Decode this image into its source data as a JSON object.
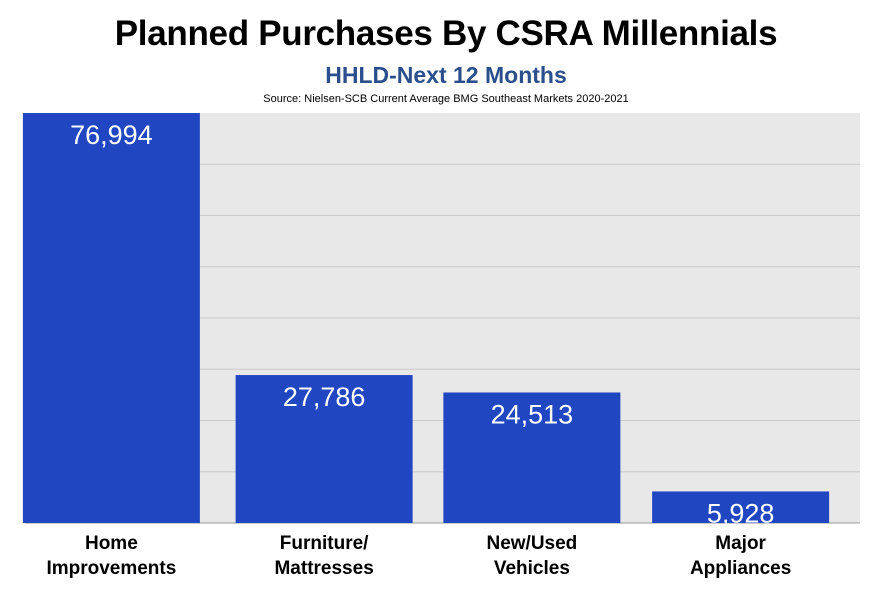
{
  "colors": {
    "bar": "#2046C2",
    "plot_bg": "#E8E8E8",
    "subtitle": "#2B4F8C",
    "grid": "#C9C9C9"
  },
  "chart_data": {
    "type": "bar",
    "title": "Planned Purchases By CSRA Millennials",
    "subtitle": "HHLD-Next 12 Months",
    "source": "Source: Nielsen-SCB  Current Average BMG Southeast Markets 2020-2021",
    "categories": [
      [
        "Home",
        "Improvements"
      ],
      [
        "Furniture/",
        "Mattresses"
      ],
      [
        "New/Used",
        "Vehicles"
      ],
      [
        "Major",
        "Appliances"
      ]
    ],
    "values": [
      76994,
      27786,
      24513,
      5928
    ],
    "value_labels": [
      "76,994",
      "27,786",
      "24,513",
      "5,928"
    ],
    "ylim": [
      0,
      77000
    ],
    "grid": true,
    "legend": false
  }
}
